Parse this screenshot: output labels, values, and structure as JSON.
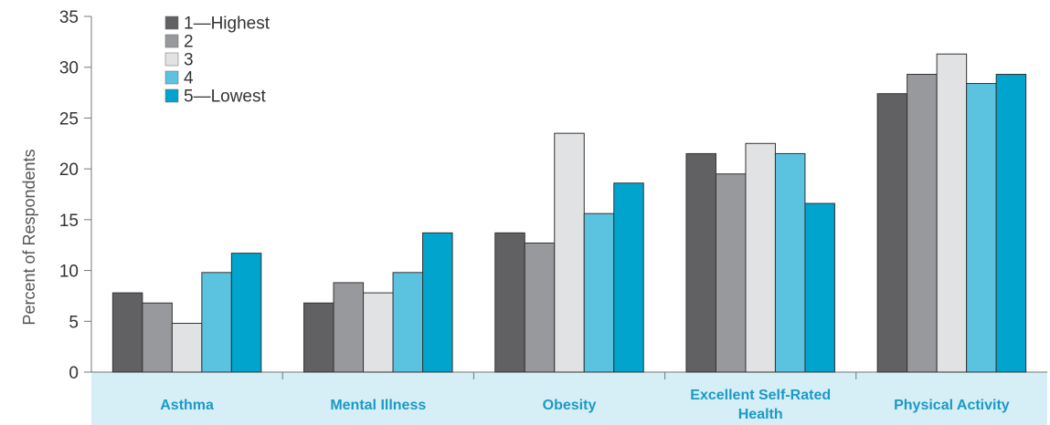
{
  "chart_data": {
    "type": "bar",
    "title": "",
    "xlabel": "",
    "ylabel": "Percent of Respondents",
    "ylim": [
      0,
      35
    ],
    "yticks": [
      0,
      5,
      10,
      15,
      20,
      25,
      30,
      35
    ],
    "grid": false,
    "legend_position": "top-left",
    "categories": [
      [
        "Asthma"
      ],
      [
        "Mental Illness"
      ],
      [
        "Obesity"
      ],
      [
        "Excellent Self-Rated",
        "Health"
      ],
      [
        "Physical Activity"
      ]
    ],
    "series": [
      {
        "name": "1—Highest",
        "color": "#616164",
        "values": [
          7.8,
          6.8,
          13.7,
          21.5,
          27.4
        ]
      },
      {
        "name": "2",
        "color": "#98999c",
        "values": [
          6.8,
          8.8,
          12.7,
          19.5,
          29.3
        ]
      },
      {
        "name": "3",
        "color": "#e1e2e3",
        "values": [
          4.8,
          7.8,
          23.5,
          22.5,
          31.3
        ]
      },
      {
        "name": "4",
        "color": "#5bc3e0",
        "values": [
          9.8,
          9.8,
          15.6,
          21.5,
          28.4
        ]
      },
      {
        "name": "5—Lowest",
        "color": "#00a4cc",
        "values": [
          11.7,
          13.7,
          18.6,
          16.6,
          29.3
        ]
      }
    ],
    "category_band_color": "#d6eef6",
    "category_label_color": "#1a9ac6"
  }
}
